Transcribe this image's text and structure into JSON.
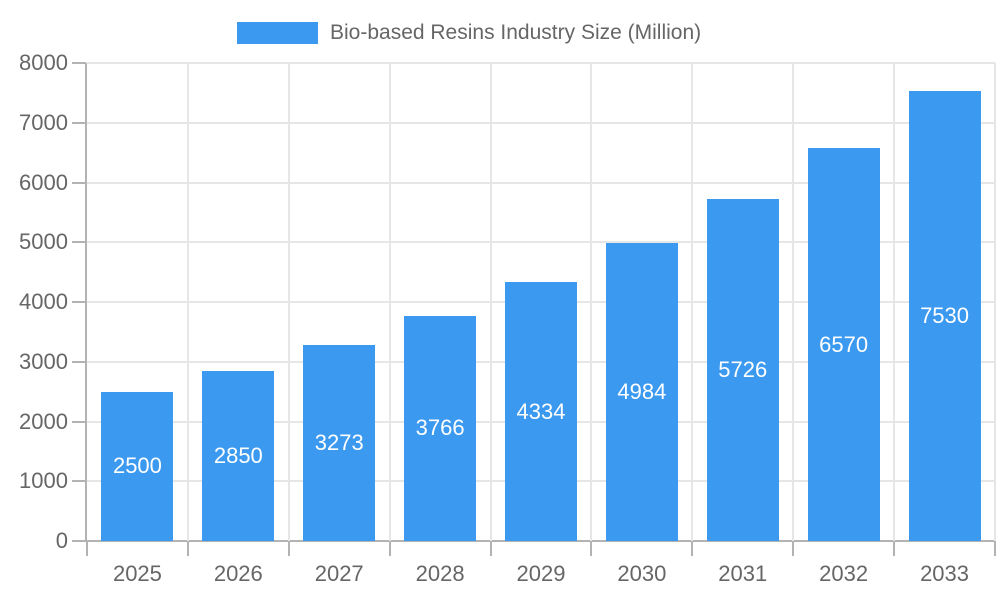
{
  "chart_data": {
    "type": "bar",
    "title": "Bio-based Resins Industry Size (Million)",
    "legend": {
      "label": "Bio-based Resins Industry Size (Million)",
      "position": "top-center"
    },
    "categories": [
      "2025",
      "2026",
      "2027",
      "2028",
      "2029",
      "2030",
      "2031",
      "2032",
      "2033"
    ],
    "series": [
      {
        "name": "Bio-based Resins Industry Size (Million)",
        "values": [
          2500,
          2850,
          3273,
          3766,
          4334,
          4984,
          5726,
          6570,
          7530
        ]
      }
    ],
    "xlabel": "",
    "ylabel": "",
    "ylim": [
      0,
      8000
    ],
    "ytick_step": 1000,
    "yticks": [
      0,
      1000,
      2000,
      3000,
      4000,
      5000,
      6000,
      7000,
      8000
    ],
    "grid": true,
    "bar_value_labels_inside": true,
    "colors": {
      "bar": "#3B99F0",
      "bar_label_text": "#FFFFFF",
      "axis_text": "#666666",
      "grid_line": "#E6E6E6",
      "axis_line": "#B3B3B3",
      "background": "#FFFFFF"
    }
  }
}
